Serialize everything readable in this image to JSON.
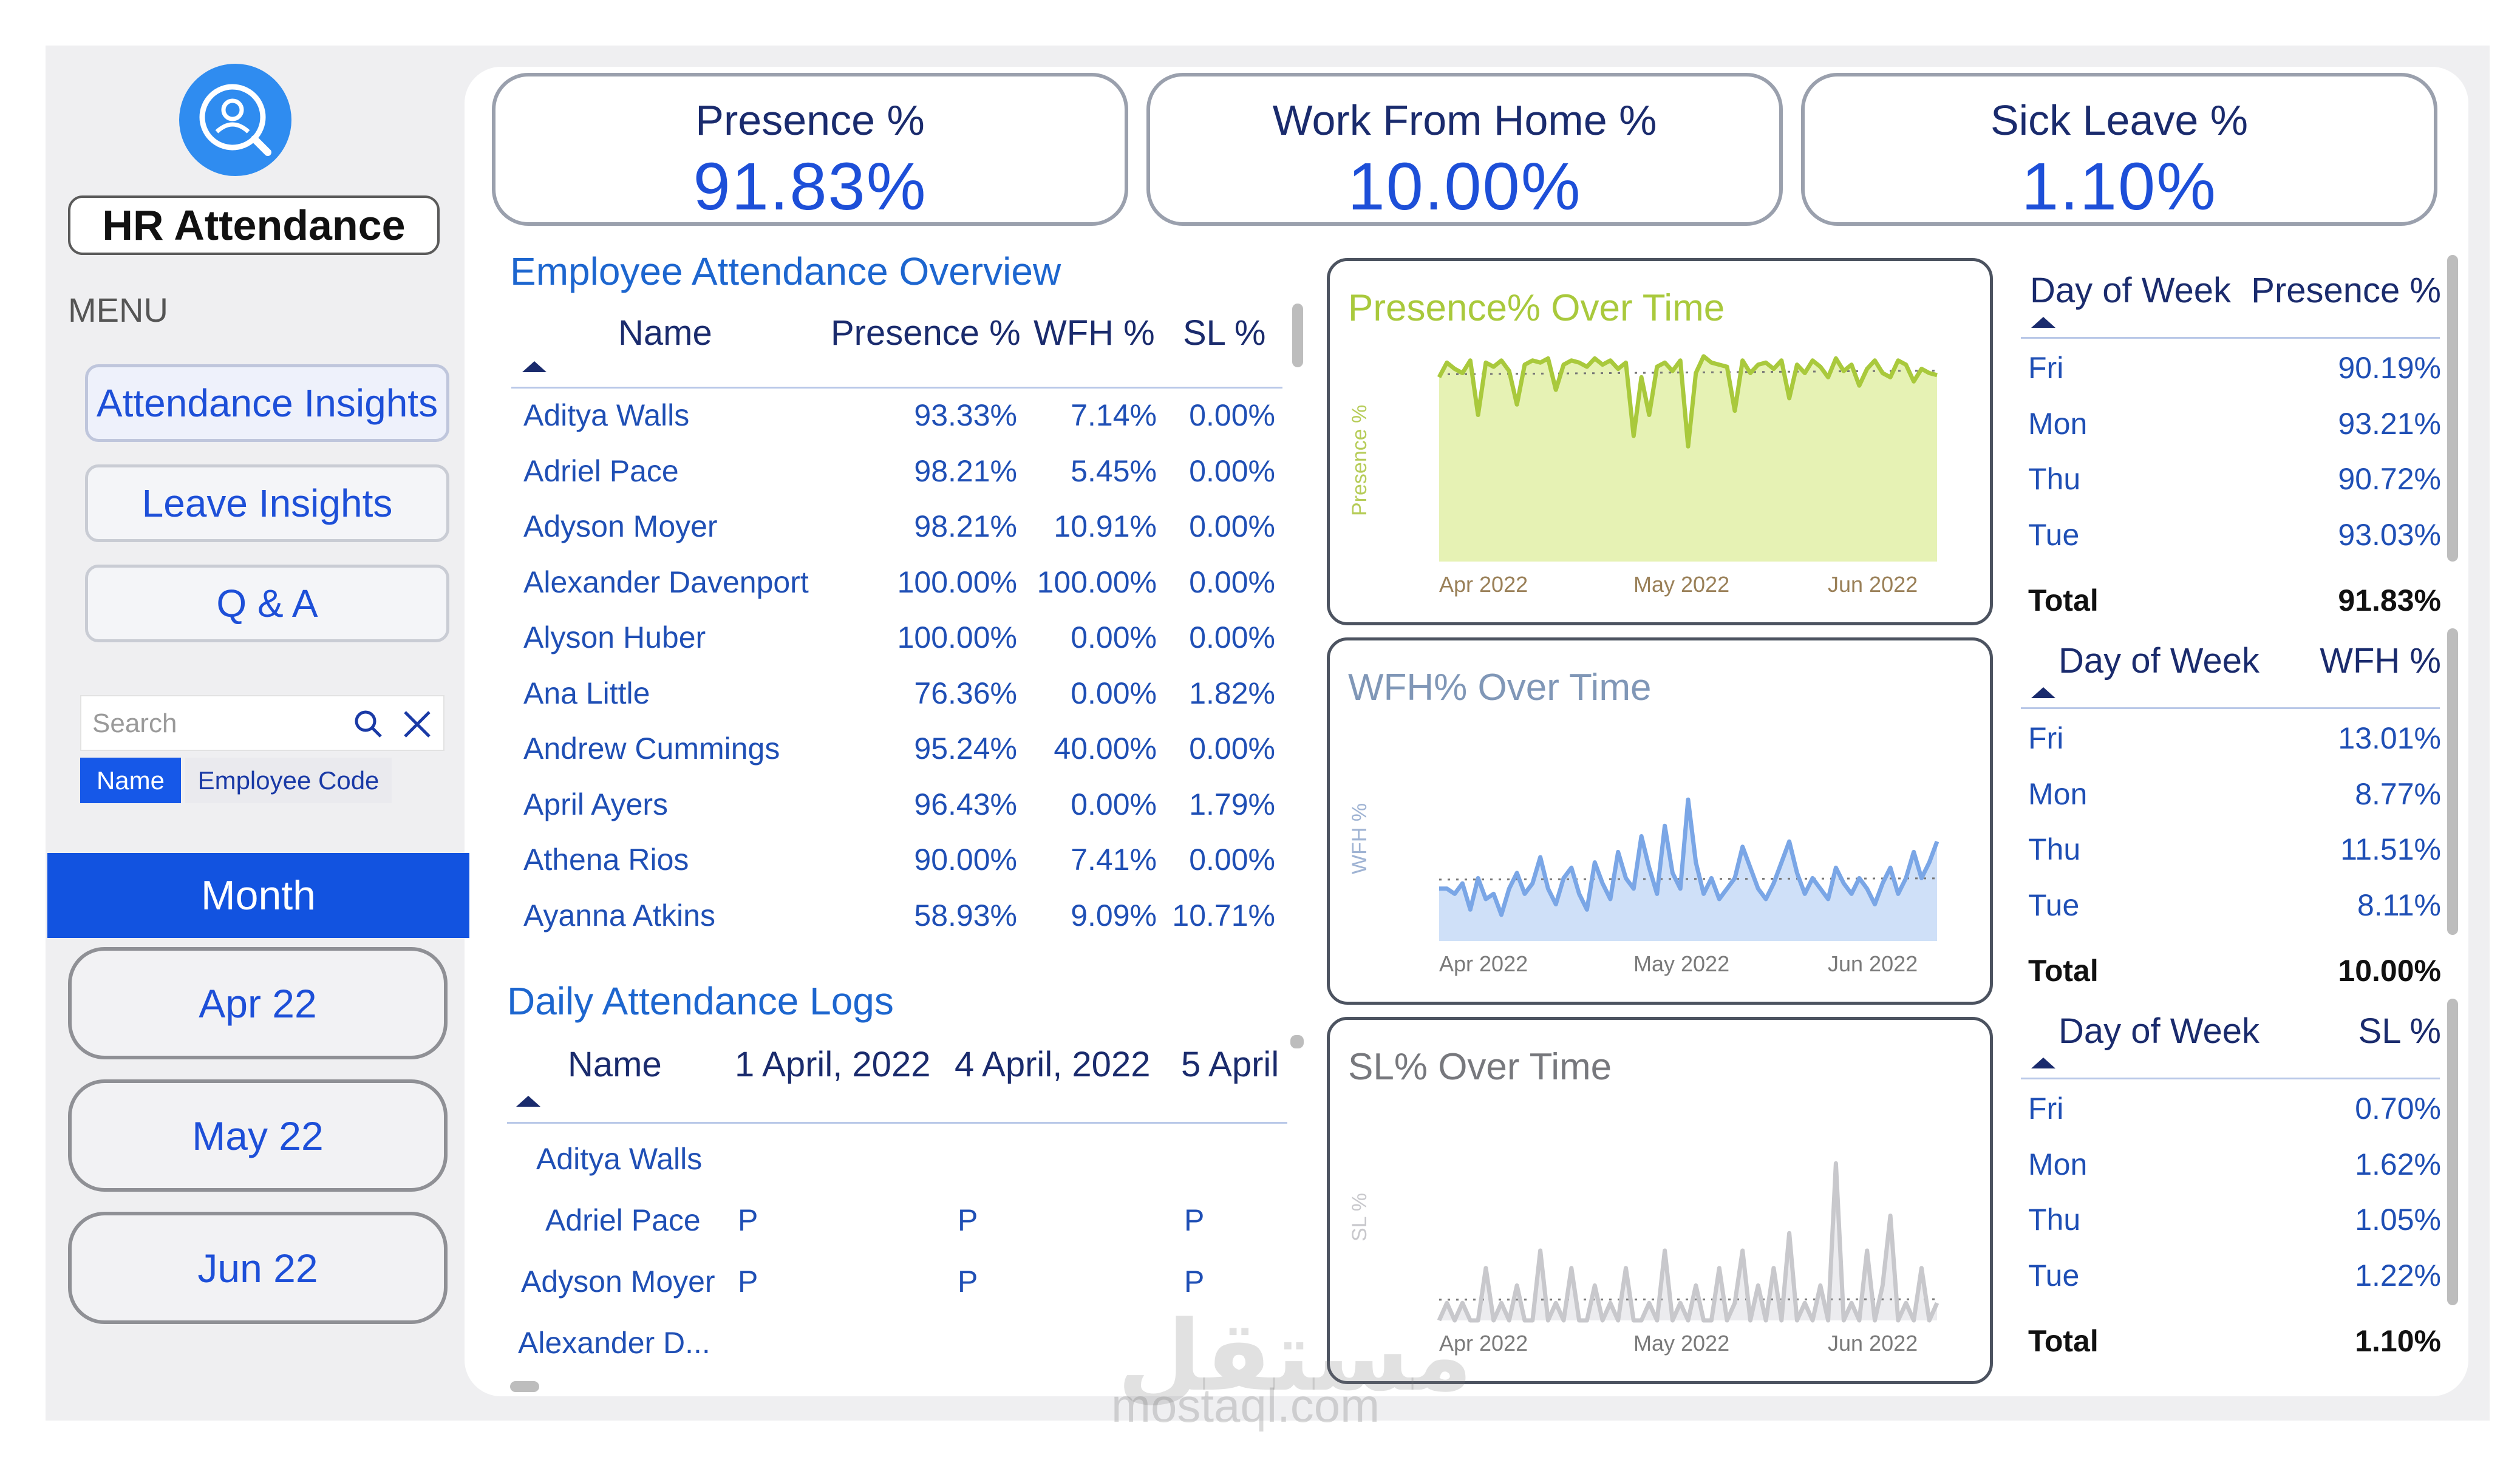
{
  "app": {
    "title": "HR Attendance",
    "menu_label": "MENU"
  },
  "nav": {
    "items": [
      "Attendance Insights",
      "Leave Insights",
      "Q & A"
    ]
  },
  "search": {
    "placeholder": "Search",
    "toggle_on": "Name",
    "toggle_off": "Employee Code"
  },
  "month": {
    "header": "Month",
    "options": [
      "Apr 22",
      "May 22",
      "Jun 22"
    ]
  },
  "kpis": [
    {
      "title": "Presence %",
      "value": "91.83%"
    },
    {
      "title": "Work From Home %",
      "value": "10.00%"
    },
    {
      "title": "Sick Leave %",
      "value": "1.10%"
    }
  ],
  "overview": {
    "title": "Employee Attendance Overview",
    "columns": [
      "Name",
      "Presence %",
      "WFH %",
      "SL %"
    ],
    "rows": [
      [
        "Aditya Walls",
        "93.33%",
        "7.14%",
        "0.00%"
      ],
      [
        "Adriel Pace",
        "98.21%",
        "5.45%",
        "0.00%"
      ],
      [
        "Adyson Moyer",
        "98.21%",
        "10.91%",
        "0.00%"
      ],
      [
        "Alexander Davenport",
        "100.00%",
        "100.00%",
        "0.00%"
      ],
      [
        "Alyson Huber",
        "100.00%",
        "0.00%",
        "0.00%"
      ],
      [
        "Ana Little",
        "76.36%",
        "0.00%",
        "1.82%"
      ],
      [
        "Andrew Cummings",
        "95.24%",
        "40.00%",
        "0.00%"
      ],
      [
        "April Ayers",
        "96.43%",
        "0.00%",
        "1.79%"
      ],
      [
        "Athena Rios",
        "90.00%",
        "7.41%",
        "0.00%"
      ],
      [
        "Ayanna Atkins",
        "58.93%",
        "9.09%",
        "10.71%"
      ]
    ]
  },
  "logs": {
    "title": "Daily Attendance Logs",
    "columns": [
      "Name",
      "1 April, 2022",
      "4 April, 2022",
      "5 April"
    ],
    "rows": [
      [
        "Aditya Walls",
        "",
        "",
        ""
      ],
      [
        "Adriel Pace",
        "P",
        "P",
        "P"
      ],
      [
        "Adyson Moyer",
        "P",
        "P",
        "P"
      ],
      [
        "Alexander D...",
        "",
        "",
        ""
      ]
    ]
  },
  "chart_data": [
    {
      "type": "line",
      "title": "Presence% Over Time",
      "ylabel": "Presence %",
      "xlabel": "",
      "x_ticks": [
        "Apr 2022",
        "May 2022",
        "Jun 2022"
      ],
      "ylim": [
        0,
        100
      ],
      "color": "#a9c93c",
      "values": [
        88,
        95,
        92,
        90,
        96,
        70,
        95,
        93,
        96,
        91,
        75,
        94,
        96,
        95,
        97,
        82,
        94,
        96,
        95,
        93,
        97,
        94,
        96,
        92,
        95,
        60,
        88,
        70,
        93,
        95,
        91,
        96,
        55,
        90,
        98,
        95,
        94,
        93,
        72,
        96,
        90,
        94,
        95,
        92,
        96,
        78,
        94,
        90,
        96,
        93,
        88,
        97,
        91,
        94,
        84,
        92,
        96,
        90,
        88,
        96,
        94,
        86,
        92,
        90,
        89
      ]
    },
    {
      "type": "area",
      "title": "WFH% Over Time",
      "ylabel": "WFH %",
      "xlabel": "",
      "x_ticks": [
        "Apr 2022",
        "May 2022",
        "Jun 2022"
      ],
      "ylim": [
        0,
        40
      ],
      "color": "#7aa6e6",
      "values": [
        10,
        10,
        9,
        11,
        6,
        12,
        8,
        9,
        5,
        10,
        13,
        9,
        11,
        16,
        10,
        7,
        12,
        14,
        9,
        6,
        15,
        11,
        8,
        17,
        12,
        10,
        20,
        14,
        9,
        22,
        13,
        10,
        27,
        15,
        9,
        12,
        8,
        10,
        12,
        18,
        14,
        10,
        8,
        11,
        15,
        19,
        13,
        9,
        12,
        10,
        8,
        14,
        11,
        9,
        12,
        10,
        7,
        11,
        14,
        9,
        12,
        17,
        12,
        15,
        19
      ]
    },
    {
      "type": "area",
      "title": "SL% Over Time",
      "ylabel": "SL %",
      "xlabel": "",
      "x_ticks": [
        "Apr 2022",
        "May 2022",
        "Jun 2022"
      ],
      "ylim": [
        0,
        12
      ],
      "color": "#c8c8cc",
      "values": [
        0,
        1,
        0,
        1,
        0,
        0,
        3,
        0,
        1,
        0,
        2,
        0,
        0,
        4,
        0,
        1,
        0,
        3,
        0,
        0,
        2,
        0,
        1,
        0,
        3,
        0,
        0,
        1,
        0,
        4,
        0,
        1,
        0,
        2,
        0,
        0,
        3,
        0,
        1,
        4,
        0,
        2,
        0,
        3,
        0,
        5,
        0,
        1,
        0,
        2,
        0,
        9,
        0,
        1,
        0,
        4,
        0,
        2,
        6,
        0,
        1,
        0,
        3,
        0,
        1
      ]
    }
  ],
  "dow_presence": {
    "headers": [
      "Day of Week",
      "Presence %"
    ],
    "rows": [
      [
        "Fri",
        "90.19%"
      ],
      [
        "Mon",
        "93.21%"
      ],
      [
        "Thu",
        "90.72%"
      ],
      [
        "Tue",
        "93.03%"
      ]
    ],
    "total": [
      "Total",
      "91.83%"
    ]
  },
  "dow_wfh": {
    "headers": [
      "Day of Week",
      "WFH %"
    ],
    "rows": [
      [
        "Fri",
        "13.01%"
      ],
      [
        "Mon",
        "8.77%"
      ],
      [
        "Thu",
        "11.51%"
      ],
      [
        "Tue",
        "8.11%"
      ]
    ],
    "total": [
      "Total",
      "10.00%"
    ]
  },
  "dow_sl": {
    "headers": [
      "Day of Week",
      "SL %"
    ],
    "rows": [
      [
        "Fri",
        "0.70%"
      ],
      [
        "Mon",
        "1.62%"
      ],
      [
        "Thu",
        "1.05%"
      ],
      [
        "Tue",
        "1.22%"
      ]
    ],
    "total": [
      "Total",
      "1.10%"
    ]
  },
  "watermark": {
    "arabic": "مستقل",
    "latin": "mostaql.com"
  }
}
